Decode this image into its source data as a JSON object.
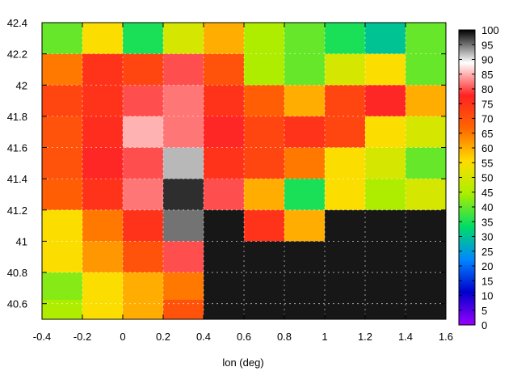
{
  "chart_data": {
    "type": "heatmap",
    "title": "",
    "xlabel": "lon (deg)",
    "ylabel": "",
    "xlim": [
      -0.4,
      1.6
    ],
    "ylim": [
      40.5,
      42.4
    ],
    "x_ticks": [
      -0.4,
      -0.2,
      0,
      0.2,
      0.4,
      0.6,
      0.8,
      1,
      1.2,
      1.4,
      1.6
    ],
    "x_tick_labels": [
      "-0.4",
      "-0.2",
      "0",
      "0.2",
      "0.4",
      "0.6",
      "0.8",
      "1",
      "1.2",
      "1.4",
      "1.6"
    ],
    "y_ticks": [
      40.6,
      40.8,
      41,
      41.2,
      41.4,
      41.6,
      41.8,
      42,
      42.2,
      42.4
    ],
    "y_tick_labels": [
      "40.6",
      "40.8",
      "41",
      "41.2",
      "41.4",
      "41.6",
      "41.8",
      "42",
      "42.2",
      "42.4"
    ],
    "grid": true,
    "colorbar": {
      "min": 0,
      "max": 100,
      "ticks": [
        0,
        5,
        10,
        15,
        20,
        25,
        30,
        35,
        40,
        45,
        50,
        55,
        60,
        65,
        70,
        75,
        80,
        85,
        90,
        95,
        100
      ],
      "tick_labels": [
        "0",
        "5",
        "10",
        "15",
        "20",
        "25",
        "30",
        "35",
        "40",
        "45",
        "50",
        "55",
        "60",
        "65",
        "70",
        "75",
        "80",
        "85",
        "90",
        "95",
        "100"
      ],
      "placement": "right",
      "colors": [
        "#9900ff",
        "#0000cc",
        "#0088ff",
        "#00dd66",
        "#aaee00",
        "#ffdd00",
        "#ff6600",
        "#ff2222",
        "#ffffff",
        "#000000"
      ]
    },
    "grid_lon": [
      -0.3,
      -0.1,
      0.1,
      0.3,
      0.5,
      0.7,
      0.9,
      1.1,
      1.3,
      1.5
    ],
    "grid_lat": [
      42.3,
      42.1,
      41.9,
      41.7,
      41.5,
      41.3,
      41.1,
      40.9,
      40.7,
      40.55
    ],
    "values": [
      [
        40,
        55,
        35,
        50,
        60,
        45,
        40,
        35,
        30,
        40
      ],
      [
        65,
        75,
        72,
        80,
        70,
        45,
        40,
        50,
        55,
        40
      ],
      [
        72,
        75,
        80,
        82,
        75,
        68,
        60,
        72,
        78,
        60
      ],
      [
        70,
        76,
        85,
        82,
        78,
        72,
        75,
        72,
        55,
        50
      ],
      [
        70,
        78,
        80,
        92,
        75,
        72,
        65,
        55,
        50,
        40
      ],
      [
        68,
        75,
        82,
        98,
        80,
        60,
        35,
        55,
        45,
        50
      ],
      [
        55,
        65,
        75,
        95,
        99,
        75,
        60,
        99,
        99,
        99
      ],
      [
        55,
        62,
        70,
        80,
        99,
        99,
        99,
        99,
        99,
        99
      ],
      [
        42,
        55,
        60,
        65,
        99,
        99,
        99,
        99,
        99,
        99
      ],
      [
        45,
        55,
        60,
        70,
        99,
        99,
        99,
        99,
        99,
        99
      ]
    ]
  }
}
